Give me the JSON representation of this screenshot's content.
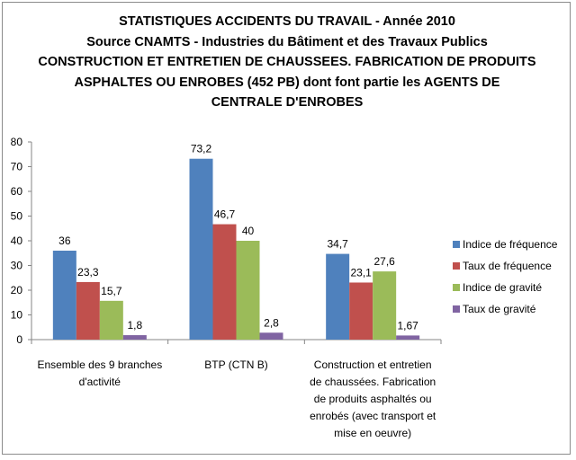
{
  "chart_data": {
    "type": "bar",
    "title_lines": [
      "STATISTIQUES ACCIDENTS DU TRAVAIL - Année 2010",
      "Source CNAMTS - Industries du Bâtiment et des Travaux Publics",
      "CONSTRUCTION ET ENTRETIEN DE CHAUSSEES. FABRICATION DE PRODUITS",
      "ASPHALTES OU ENROBES (452 PB) dont font partie les AGENTS DE",
      "CENTRALE D'ENROBES"
    ],
    "categories": [
      [
        "Ensemble des 9 branches",
        "d'activité"
      ],
      [
        "BTP (CTN B)"
      ],
      [
        "Construction et entretien",
        "de chaussées. Fabrication",
        "de produits asphaltés ou",
        "enrobés (avec transport et",
        "mise en oeuvre)"
      ]
    ],
    "series": [
      {
        "name": "Indice de fréquence",
        "color": "#4f81bd",
        "values": [
          36,
          73.2,
          34.7
        ],
        "labels": [
          "36",
          "73,2",
          "34,7"
        ]
      },
      {
        "name": "Taux de fréquence",
        "color": "#c0504d",
        "values": [
          23.3,
          46.7,
          23.1
        ],
        "labels": [
          "23,3",
          "46,7",
          "23,1"
        ]
      },
      {
        "name": "Indice de gravité",
        "color": "#9bbb59",
        "values": [
          15.7,
          40,
          27.6
        ],
        "labels": [
          "15,7",
          "40",
          "27,6"
        ]
      },
      {
        "name": "Taux de gravité",
        "color": "#8064a2",
        "values": [
          1.8,
          2.8,
          1.67
        ],
        "labels": [
          "1,8",
          "2,8",
          "1,67"
        ]
      }
    ],
    "yticks": [
      "0",
      "10",
      "20",
      "30",
      "40",
      "50",
      "60",
      "70",
      "80"
    ],
    "ylim": [
      0,
      80
    ],
    "grid": false,
    "legend_position": "right"
  }
}
